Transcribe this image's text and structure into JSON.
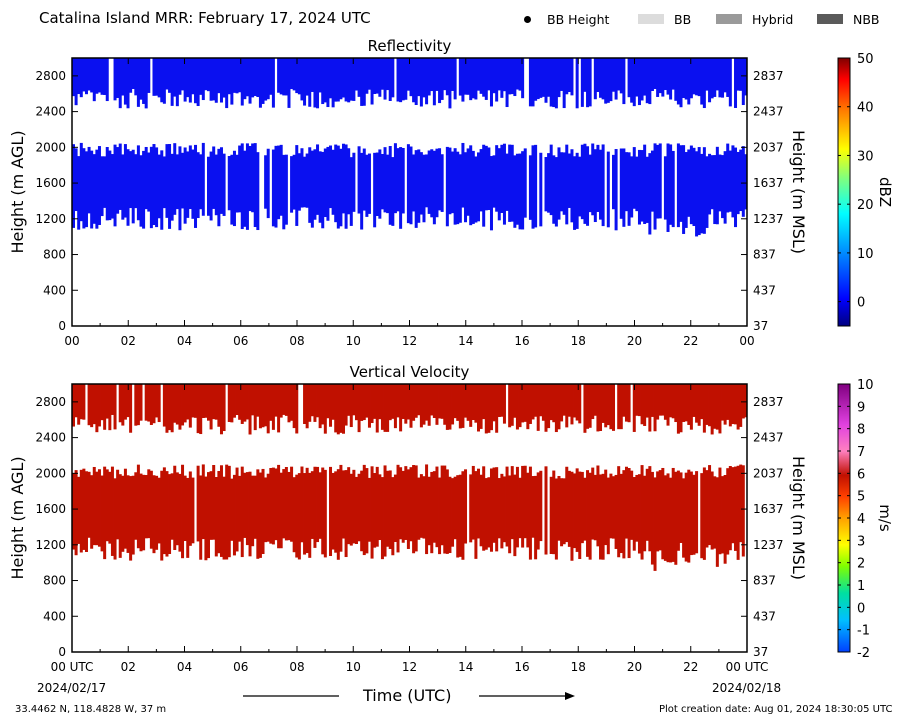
{
  "header": {
    "title": "Catalina Island MRR:  February 17, 2024 UTC",
    "legend": [
      {
        "label": "BB Height",
        "kind": "dot",
        "color": "#000000"
      },
      {
        "label": "BB",
        "kind": "swatch",
        "color": "#dcdcdc"
      },
      {
        "label": "Hybrid",
        "kind": "swatch",
        "color": "#9a9a9a"
      },
      {
        "label": "NBB",
        "kind": "swatch",
        "color": "#5a5a5a"
      }
    ]
  },
  "footer": {
    "location": "33.4462 N, 118.4828 W, 37 m",
    "creation": "Plot creation date: Aug 01, 2024 18:30:05 UTC",
    "start_date": "2024/02/17",
    "end_date": "2024/02/18",
    "x_title": "Time (UTC)"
  },
  "chart_data": [
    {
      "type": "heatmap",
      "title": "Reflectivity",
      "ylabel": "Height (m AGL)",
      "ylabel_right": "Height (m MSL)",
      "xlabel": "",
      "xlim": [
        0,
        24
      ],
      "ylim": [
        0,
        3000
      ],
      "x_ticks": [
        "00",
        "02",
        "04",
        "06",
        "08",
        "10",
        "12",
        "14",
        "16",
        "18",
        "20",
        "22",
        "00"
      ],
      "y_ticks": [
        0,
        400,
        800,
        1200,
        1600,
        2000,
        2400,
        2800
      ],
      "y_ticks_right": [
        37,
        437,
        837,
        1237,
        1637,
        2037,
        2437,
        2837
      ],
      "colorbar": {
        "label": "dBZ",
        "range": [
          -5,
          50
        ],
        "ticks": [
          0,
          10,
          20,
          30,
          40,
          50
        ]
      },
      "dominant_color": "#0a10f0",
      "layers": [
        {
          "name": "upper",
          "base_m": 2500,
          "top_m": 3000,
          "value_dBZ": 5
        },
        {
          "name": "lower",
          "base_m": 1200,
          "top_m": 2050,
          "value_dBZ": 1
        }
      ],
      "grid": false
    },
    {
      "type": "heatmap",
      "title": "Vertical Velocity",
      "ylabel": "Height (m AGL)",
      "ylabel_right": "Height (m MSL)",
      "xlabel": "Time (UTC)",
      "xlim": [
        0,
        24
      ],
      "ylim": [
        0,
        3000
      ],
      "x_ticks": [
        "00 UTC",
        "02",
        "04",
        "06",
        "08",
        "10",
        "12",
        "14",
        "16",
        "18",
        "20",
        "22",
        "00 UTC"
      ],
      "y_ticks": [
        0,
        400,
        800,
        1200,
        1600,
        2000,
        2400,
        2800
      ],
      "y_ticks_right": [
        37,
        437,
        837,
        1237,
        1637,
        2037,
        2437,
        2837
      ],
      "colorbar": {
        "label": "m/s",
        "range": [
          -2,
          10
        ],
        "ticks": [
          -2,
          -1,
          0,
          1,
          2,
          3,
          4,
          5,
          6,
          7,
          8,
          9,
          10
        ]
      },
      "dominant_color": "#c01000",
      "layers": [
        {
          "name": "upper",
          "base_m": 2500,
          "top_m": 3000,
          "value_ms": 5.7
        },
        {
          "name": "lower",
          "base_m": 1150,
          "top_m": 2100,
          "value_ms": 5.7
        }
      ],
      "grid": false
    }
  ]
}
